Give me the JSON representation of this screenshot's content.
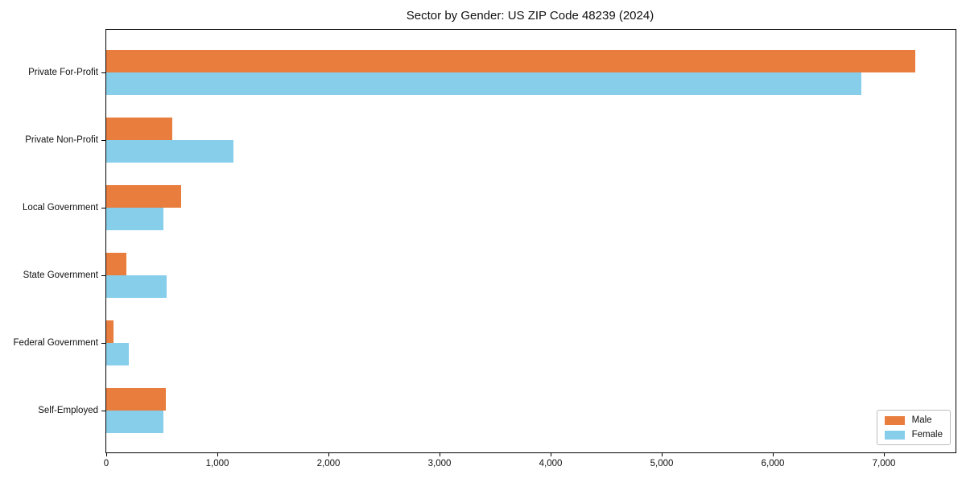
{
  "title": "Sector by Gender: US ZIP Code 48239 (2024)",
  "chart_data": {
    "type": "bar",
    "orientation": "horizontal",
    "title": "Sector by Gender: US ZIP Code 48239 (2024)",
    "categories": [
      "Private For-Profit",
      "Private Non-Profit",
      "Local Government",
      "State Government",
      "Federal Government",
      "Self-Employed"
    ],
    "series": [
      {
        "name": "Male",
        "color": "#e87d3d",
        "values": [
          7280,
          595,
          675,
          180,
          65,
          535
        ]
      },
      {
        "name": "Female",
        "color": "#87ceeb",
        "values": [
          6800,
          1145,
          515,
          545,
          200,
          515
        ]
      }
    ],
    "xlabel": "",
    "ylabel": "",
    "xlim": [
      0,
      7645
    ],
    "xticks": [
      0,
      1000,
      2000,
      3000,
      4000,
      5000,
      6000,
      7000
    ],
    "xtick_labels": [
      "0",
      "1,000",
      "2,000",
      "3,000",
      "4,000",
      "5,000",
      "6,000",
      "7,000"
    ],
    "grid": false,
    "legend": {
      "position": "lower right",
      "entries": [
        "Male",
        "Female"
      ]
    }
  }
}
